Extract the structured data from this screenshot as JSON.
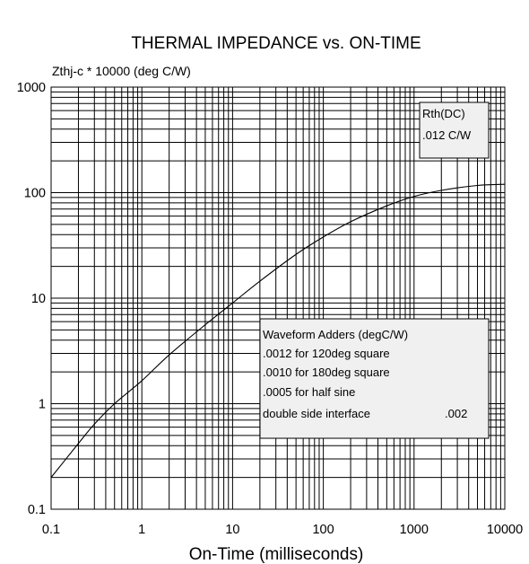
{
  "chart_data": {
    "type": "line",
    "title": "THERMAL IMPEDANCE vs. ON-TIME",
    "xlabel": "On-Time (milliseconds)",
    "ylabel": "Zthj-c * 10000 (deg C/W)",
    "x_scale": "log",
    "y_scale": "log",
    "xlim": [
      0.1,
      10000
    ],
    "ylim": [
      0.1,
      1000
    ],
    "grid": true,
    "x_ticks": [
      "0.1",
      "1",
      "10",
      "100",
      "1000",
      "10000"
    ],
    "y_ticks": [
      "0.1",
      "1",
      "10",
      "100",
      "1000"
    ],
    "series": [
      {
        "x": [
          0.1,
          0.2,
          0.3,
          0.5,
          1,
          2,
          5,
          10,
          20,
          50,
          100,
          200,
          500,
          1000,
          2000,
          5000,
          10000
        ],
        "y": [
          0.2,
          0.42,
          0.64,
          1.0,
          1.65,
          2.9,
          5.6,
          9,
          14.5,
          26,
          38,
          53,
          75,
          92,
          105,
          117,
          120
        ]
      }
    ],
    "annotations": {
      "rth_box": [
        "Rth(DC)",
        ".012 C/W"
      ],
      "adders_box": {
        "title": "Waveform Adders (degC/W)",
        "lines": [
          ".0012 for 120deg square",
          ".0010 for 180deg square",
          ".0005 for half sine"
        ],
        "interface_label": "double side interface",
        "interface_value": ".002"
      }
    },
    "colors": {
      "line": "#000000",
      "grid": "#000000",
      "box_fill": "#f0f0f0"
    }
  }
}
